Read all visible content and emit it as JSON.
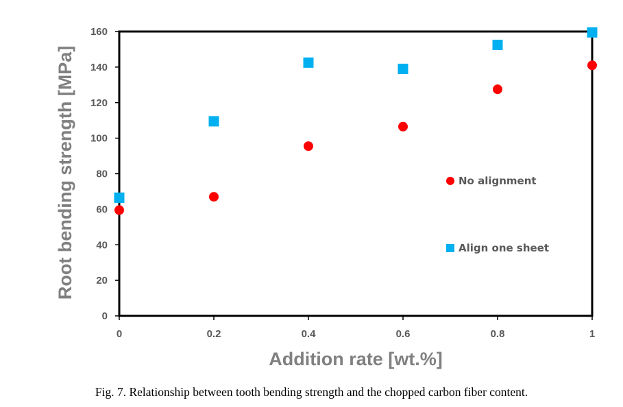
{
  "caption": "Fig. 7. Relationship between tooth bending strength and the chopped carbon fiber content.",
  "chart_data": {
    "type": "scatter",
    "title": "",
    "xlabel": "Addition rate [wt.%]",
    "ylabel": "Root bending strength [MPa]",
    "xlim": [
      0,
      1
    ],
    "ylim": [
      0,
      160
    ],
    "xticks": [
      0,
      0.2,
      0.4,
      0.6,
      0.8,
      1
    ],
    "yticks": [
      0,
      20,
      40,
      60,
      80,
      100,
      120,
      140,
      160
    ],
    "grid": false,
    "legend_position": "inside-right",
    "series": [
      {
        "name": "No alignment",
        "marker": "circle",
        "color": "#ff0000",
        "x": [
          0,
          0.2,
          0.4,
          0.6,
          0.8,
          1
        ],
        "y": [
          59.5,
          67,
          95.5,
          106.5,
          127.5,
          141
        ]
      },
      {
        "name": "Align one sheet",
        "marker": "square",
        "color": "#00b0f0",
        "x": [
          0,
          0.2,
          0.4,
          0.6,
          0.8,
          1
        ],
        "y": [
          66.5,
          109.5,
          142.5,
          139,
          152.5,
          159.5
        ]
      }
    ]
  }
}
